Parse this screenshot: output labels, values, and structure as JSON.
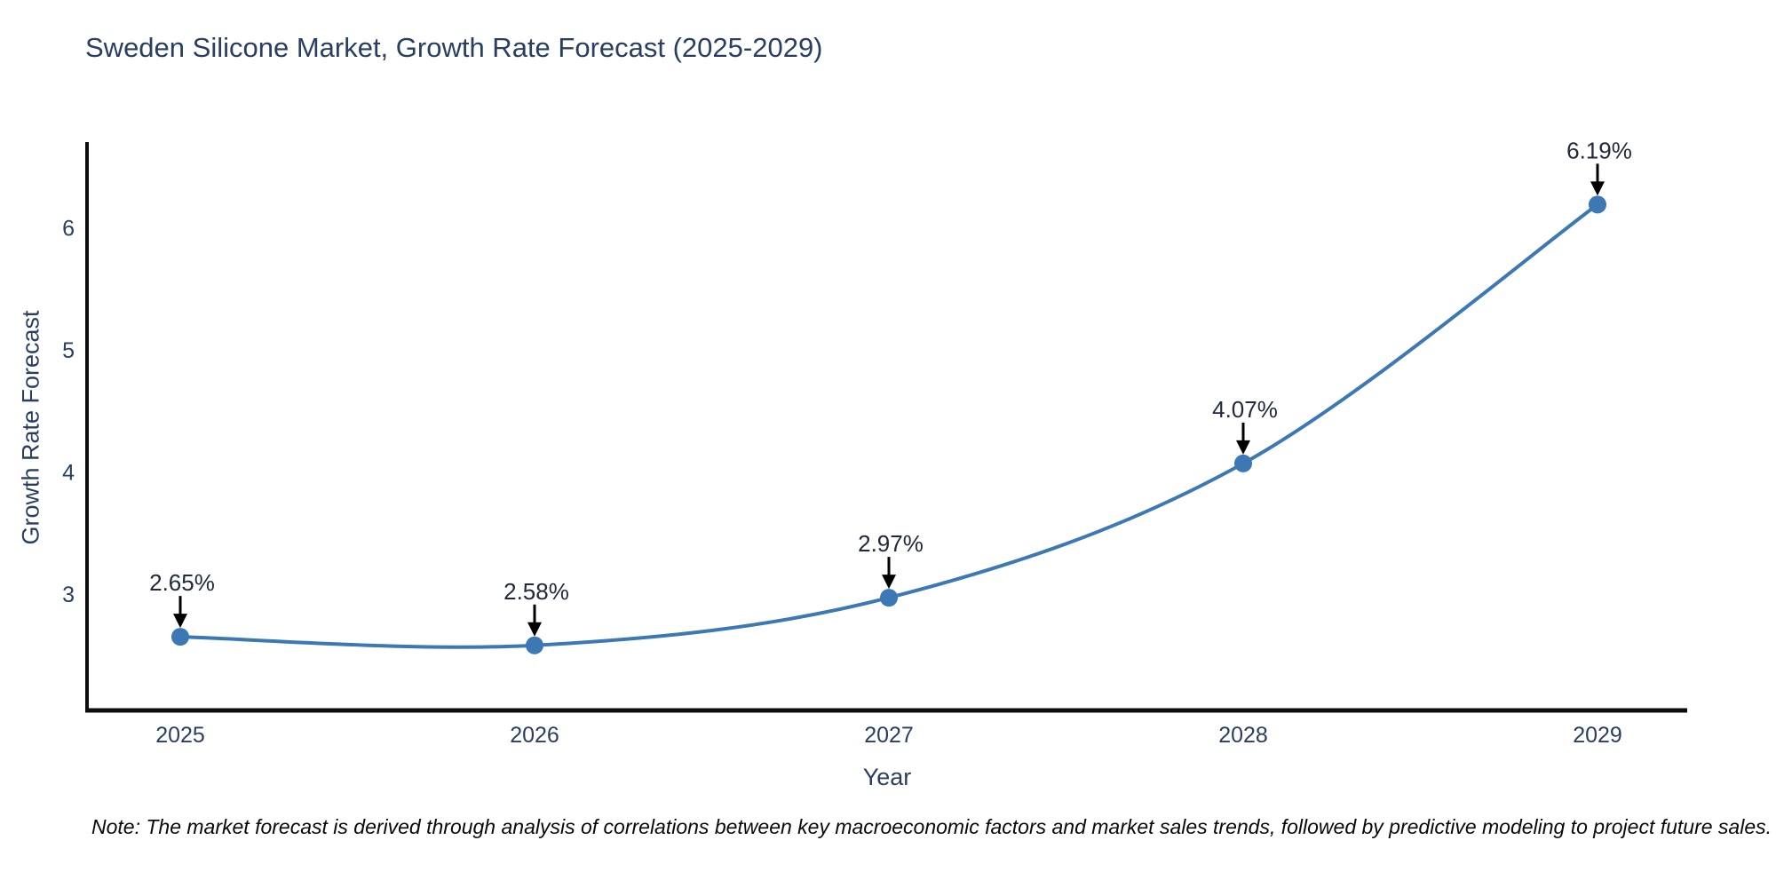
{
  "title": "Sweden Silicone Market, Growth Rate Forecast (2025-2029)",
  "note": "Note: The market forecast is derived through analysis of correlations between key macroeconomic factors and market sales trends, followed by predictive modeling to project future sales.",
  "colors": {
    "line": "#3c78b4",
    "marker": "#3c78b4",
    "axis_spine": "#0d0d0d",
    "tick_label": "#2a3f5f",
    "title_text": "#2a3f5f",
    "annotation_text": "#22293b",
    "annotation_arrow": "#000000",
    "background": "#ffffff"
  },
  "chart_data": {
    "type": "line",
    "title": "Sweden Silicone Market, Growth Rate Forecast (2025-2029)",
    "xlabel": "Year",
    "ylabel": "Growth Rate Forecast",
    "x": [
      2025,
      2026,
      2027,
      2028,
      2029
    ],
    "series": [
      {
        "name": "Growth Rate Forecast",
        "values": [
          2.65,
          2.58,
          2.97,
          4.07,
          6.19
        ]
      }
    ],
    "point_labels": [
      "2.65%",
      "2.58%",
      "2.97%",
      "4.07%",
      "6.19%"
    ],
    "yticks": [
      3,
      4,
      5,
      6
    ],
    "xlim": [
      2024.73,
      2029.26
    ],
    "ylim": [
      2.05,
      6.72
    ],
    "grid": false,
    "legend_position": "none",
    "line_shape": "spline",
    "annotations": "value labels with downward arrows above each point"
  }
}
